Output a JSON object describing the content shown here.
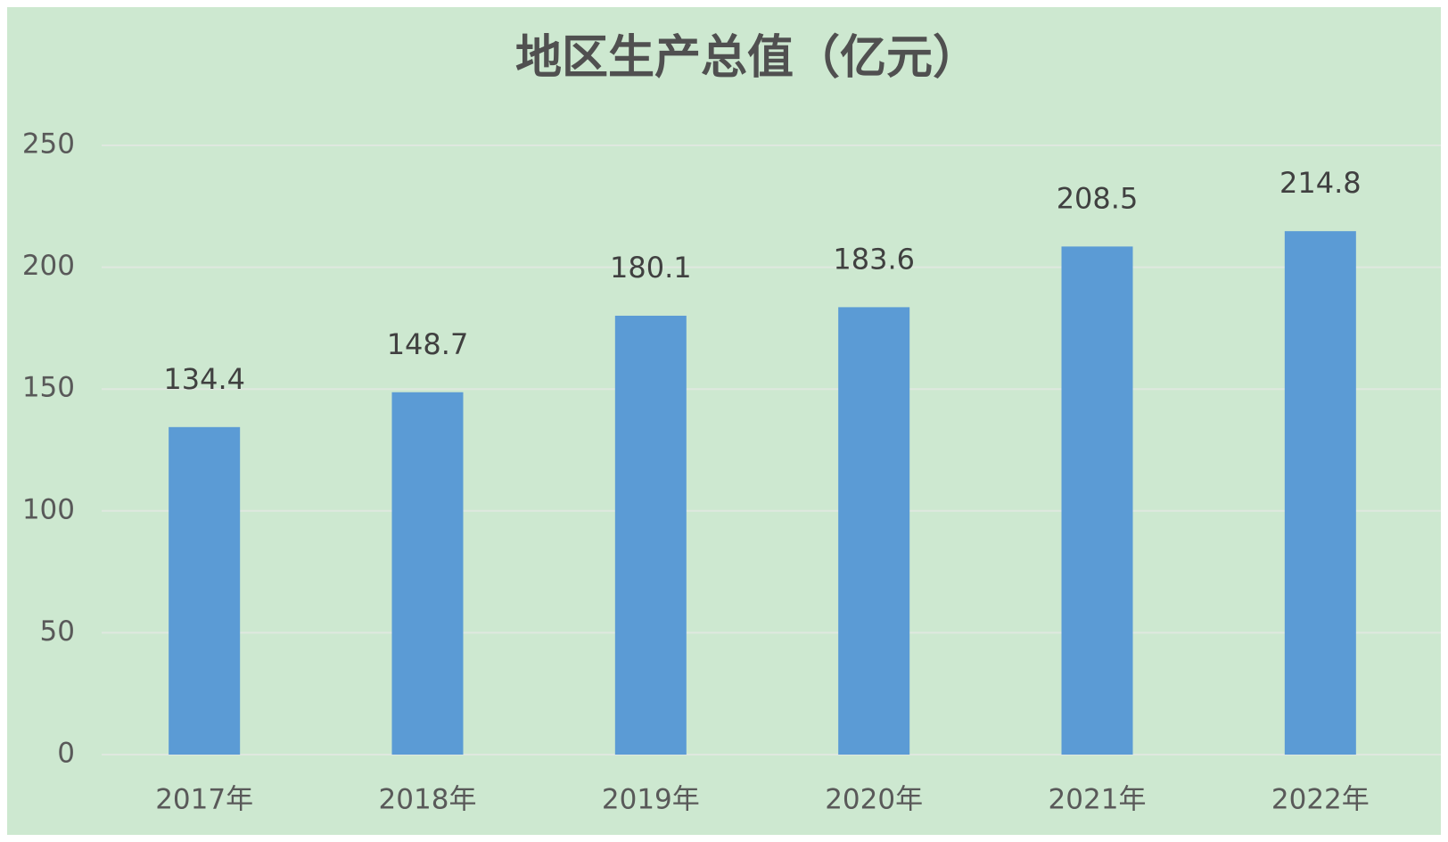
{
  "chart_data": {
    "type": "bar",
    "title": "地区生产总值（亿元）",
    "categories": [
      "2017年",
      "2018年",
      "2019年",
      "2020年",
      "2021年",
      "2022年"
    ],
    "values": [
      134.4,
      148.7,
      180.1,
      183.6,
      208.5,
      214.8
    ],
    "color": "#5b9bd5",
    "ylim": [
      0,
      250
    ],
    "yticks": [
      0,
      50,
      100,
      150,
      200,
      250
    ],
    "grid": true
  }
}
